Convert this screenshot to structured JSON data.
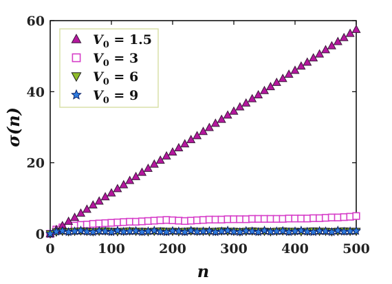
{
  "chart_data": {
    "type": "scatter",
    "xlabel": "n",
    "ylabel": "σ(n)",
    "xlim": [
      0,
      500
    ],
    "ylim": [
      0,
      60
    ],
    "xticks": [
      0,
      100,
      200,
      300,
      400,
      500
    ],
    "yticks": [
      0,
      20,
      40,
      60
    ],
    "xtick_labels": [
      "0",
      "100",
      "200",
      "300",
      "400",
      "500"
    ],
    "ytick_labels": [
      "0",
      "20",
      "40",
      "60"
    ],
    "grid": false,
    "legend_position": "top-left",
    "series": [
      {
        "name": "V0 = 1.5",
        "legend_var": "V",
        "legend_sub": "0",
        "legend_value": " = 1.5",
        "marker": "triangle-up",
        "color": "#b5179e",
        "edge": "#3a1a3a",
        "x": [
          0,
          10,
          20,
          30,
          40,
          50,
          60,
          70,
          80,
          90,
          100,
          110,
          120,
          130,
          140,
          150,
          160,
          170,
          180,
          190,
          200,
          210,
          220,
          230,
          240,
          250,
          260,
          270,
          280,
          290,
          300,
          310,
          320,
          330,
          340,
          350,
          360,
          370,
          380,
          390,
          400,
          410,
          420,
          430,
          440,
          450,
          460,
          470,
          480,
          490,
          500
        ],
        "y": [
          0,
          1.2,
          2.3,
          3.5,
          4.6,
          5.8,
          6.9,
          8.1,
          9.2,
          10.4,
          11.5,
          12.7,
          13.8,
          15.0,
          16.1,
          17.3,
          18.4,
          19.6,
          20.7,
          21.9,
          23.0,
          24.2,
          25.3,
          26.5,
          27.6,
          28.8,
          29.9,
          31.1,
          32.2,
          33.4,
          34.5,
          35.7,
          36.8,
          38.0,
          39.1,
          40.3,
          41.4,
          42.6,
          43.7,
          44.9,
          46.0,
          47.2,
          48.3,
          49.5,
          50.6,
          51.8,
          52.9,
          54.1,
          55.2,
          56.4,
          57.5
        ]
      },
      {
        "name": "V0 = 3",
        "legend_var": "V",
        "legend_sub": "0",
        "legend_value": " = 3",
        "marker": "square",
        "color": "#ffffff",
        "edge": "#d63cc8",
        "x": [
          0,
          10,
          20,
          30,
          40,
          50,
          60,
          70,
          80,
          90,
          100,
          110,
          120,
          130,
          140,
          150,
          160,
          170,
          180,
          190,
          200,
          210,
          220,
          230,
          240,
          250,
          260,
          270,
          280,
          290,
          300,
          310,
          320,
          330,
          340,
          350,
          360,
          370,
          380,
          390,
          400,
          410,
          420,
          430,
          440,
          450,
          460,
          470,
          480,
          490,
          500
        ],
        "y": [
          0,
          1.2,
          1.8,
          2.1,
          2.3,
          2.5,
          2.6,
          2.8,
          2.9,
          3.0,
          3.1,
          3.2,
          3.3,
          3.4,
          3.4,
          3.5,
          3.6,
          3.7,
          3.8,
          3.9,
          3.8,
          3.7,
          3.6,
          3.7,
          3.8,
          3.9,
          4.0,
          4.0,
          4.0,
          4.1,
          4.1,
          4.1,
          4.1,
          4.2,
          4.2,
          4.2,
          4.2,
          4.2,
          4.2,
          4.3,
          4.3,
          4.3,
          4.3,
          4.4,
          4.4,
          4.5,
          4.6,
          4.6,
          4.7,
          4.8,
          5.0
        ]
      },
      {
        "name": "V0 = 6",
        "legend_var": "V",
        "legend_sub": "0",
        "legend_value": " = 6",
        "marker": "triangle-down",
        "color": "#8fbc2a",
        "edge": "#1a1a1a",
        "x": [
          0,
          10,
          20,
          30,
          40,
          50,
          60,
          70,
          80,
          90,
          100,
          110,
          120,
          130,
          140,
          150,
          160,
          170,
          180,
          190,
          200,
          210,
          220,
          230,
          240,
          250,
          260,
          270,
          280,
          290,
          300,
          310,
          320,
          330,
          340,
          350,
          360,
          370,
          380,
          390,
          400,
          410,
          420,
          430,
          440,
          450,
          460,
          470,
          480,
          490,
          500
        ],
        "y": [
          0,
          0.5,
          0.7,
          0.6,
          0.7,
          0.8,
          0.7,
          0.6,
          0.7,
          0.8,
          0.7,
          0.6,
          0.7,
          0.8,
          0.7,
          0.7,
          0.6,
          0.7,
          0.8,
          0.7,
          0.7,
          0.6,
          0.7,
          0.8,
          0.7,
          0.7,
          0.6,
          0.7,
          0.8,
          0.7,
          0.7,
          0.6,
          0.7,
          0.8,
          0.7,
          0.7,
          0.6,
          0.7,
          0.8,
          0.7,
          0.7,
          0.6,
          0.7,
          0.8,
          0.7,
          0.7,
          0.6,
          0.7,
          0.8,
          0.7,
          0.7
        ]
      },
      {
        "name": "V0 = 9",
        "legend_var": "V",
        "legend_sub": "0",
        "legend_value": " = 9",
        "marker": "star",
        "color": "#2f7de1",
        "edge": "#0a1f66",
        "x": [
          0,
          10,
          20,
          30,
          40,
          50,
          60,
          70,
          80,
          90,
          100,
          110,
          120,
          130,
          140,
          150,
          160,
          170,
          180,
          190,
          200,
          210,
          220,
          230,
          240,
          250,
          260,
          270,
          280,
          290,
          300,
          310,
          320,
          330,
          340,
          350,
          360,
          370,
          380,
          390,
          400,
          410,
          420,
          430,
          440,
          450,
          460,
          470,
          480,
          490,
          500
        ],
        "y": [
          0,
          0.6,
          0.8,
          0.5,
          0.7,
          0.9,
          0.6,
          0.5,
          0.8,
          0.7,
          0.5,
          0.9,
          0.6,
          0.7,
          0.8,
          0.5,
          0.7,
          0.9,
          0.6,
          0.5,
          0.8,
          0.7,
          0.5,
          0.9,
          0.6,
          0.7,
          0.8,
          0.5,
          0.7,
          0.9,
          0.6,
          0.5,
          0.8,
          0.7,
          0.5,
          0.9,
          0.6,
          0.7,
          0.8,
          0.5,
          0.7,
          0.9,
          0.6,
          0.5,
          0.8,
          0.7,
          0.5,
          0.9,
          0.6,
          0.7,
          0.8
        ]
      }
    ]
  }
}
